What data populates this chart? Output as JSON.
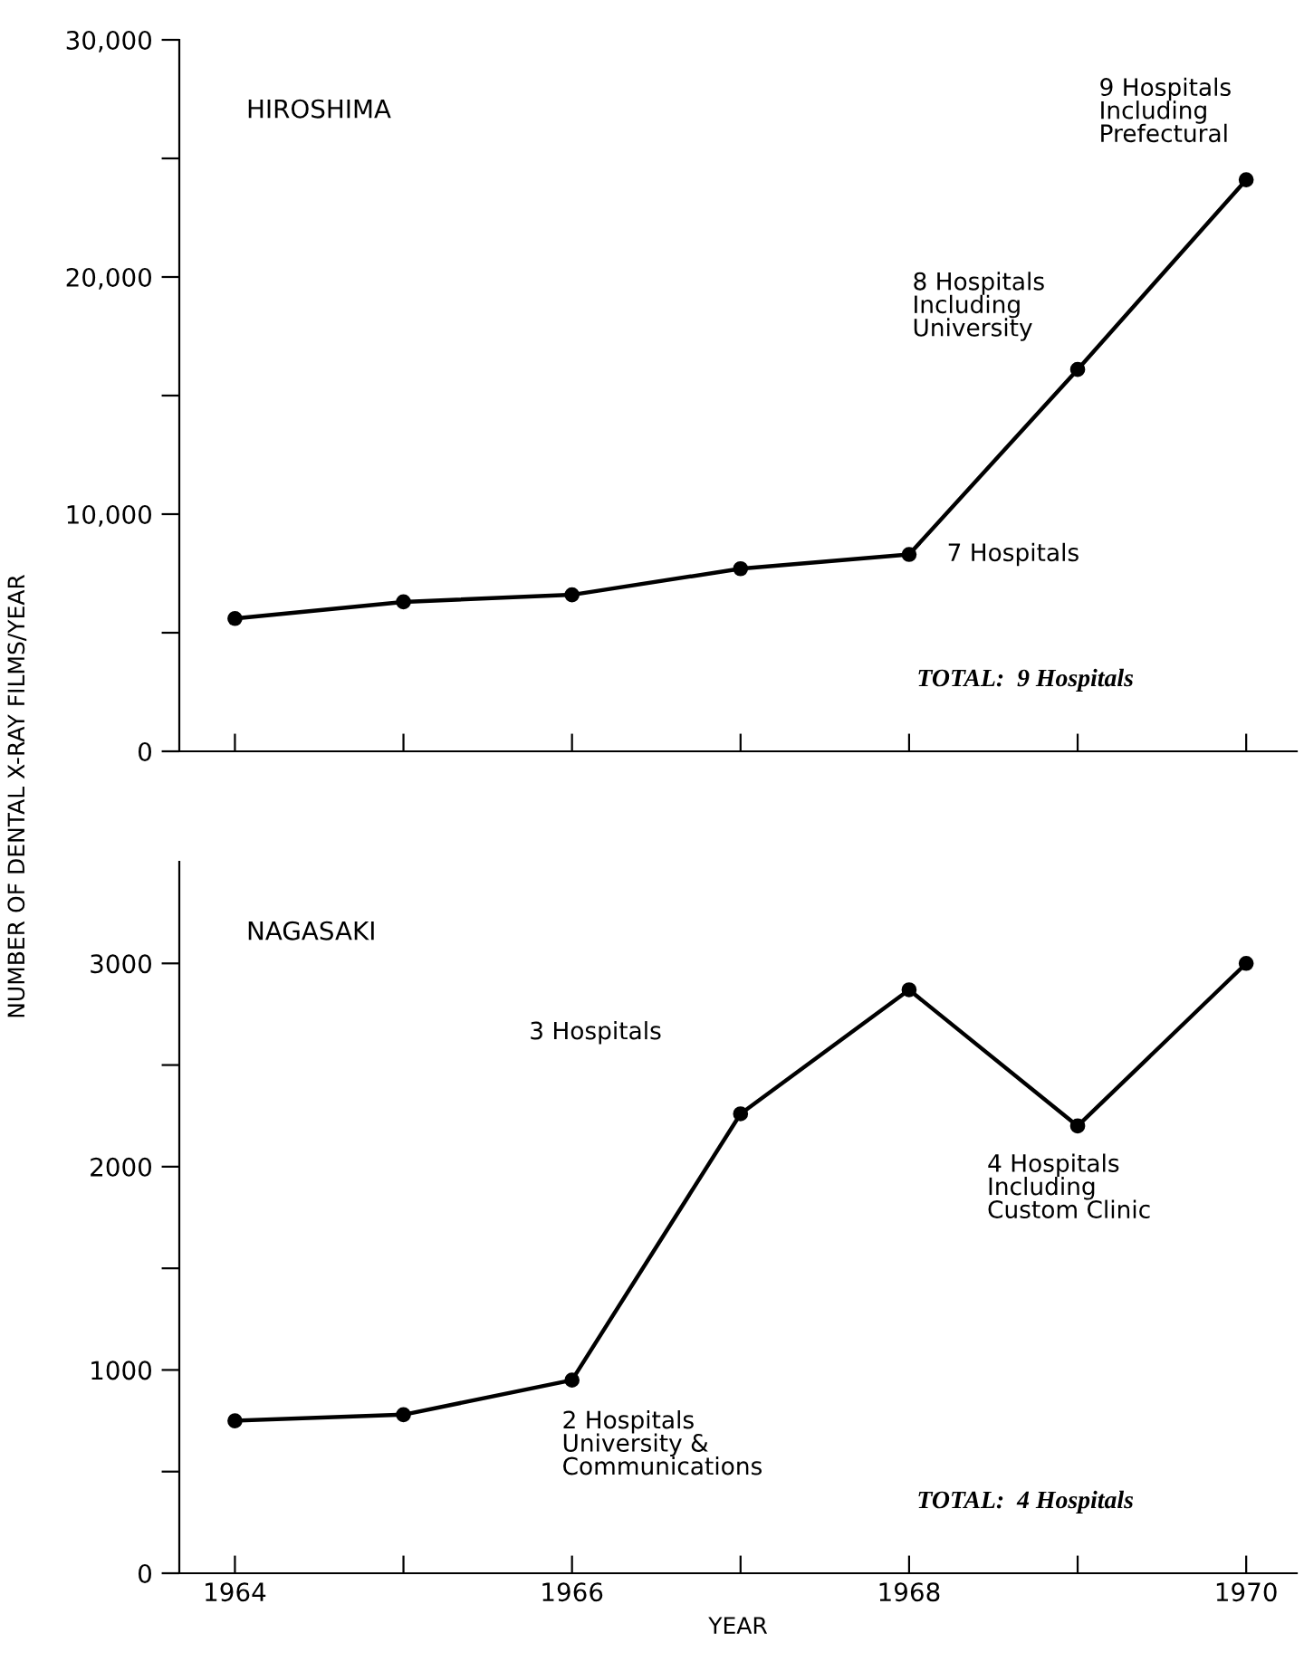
{
  "chart_data": [
    {
      "type": "line",
      "title": "HIROSHIMA",
      "ylabel": "NUMBER OF DENTAL X-RAY FILMS/YEAR",
      "x": [
        1964,
        1965,
        1966,
        1967,
        1968,
        1969,
        1970
      ],
      "series": [
        {
          "color": "#000000",
          "values": [
            5600,
            6300,
            6600,
            7700,
            8300,
            16100,
            24100
          ]
        }
      ],
      "xlim": [
        1963.67,
        1970.3
      ],
      "ylim": [
        0,
        30000
      ],
      "xticks": [
        {
          "value": 1964,
          "label": null
        },
        {
          "value": 1965,
          "label": null
        },
        {
          "value": 1966,
          "label": null
        },
        {
          "value": 1967,
          "label": null
        },
        {
          "value": 1968,
          "label": null
        },
        {
          "value": 1969,
          "label": null
        },
        {
          "value": 1970,
          "label": null
        }
      ],
      "yticks": [
        0,
        {
          "value": 5000,
          "label": null
        },
        {
          "value": 10000,
          "label": "10,000"
        },
        {
          "value": 15000,
          "label": null
        },
        {
          "value": 20000,
          "label": "20,000"
        },
        {
          "value": 25000,
          "label": null
        },
        {
          "value": 30000,
          "label": "30,000"
        }
      ],
      "tick_labels": "y",
      "marker": "circle",
      "line_style": "solid",
      "grid": false,
      "legend": false,
      "annotations": [
        "9 Hospitals\nIncluding\nPrefectural",
        "8 Hospitals\nIncluding\nUniversity",
        {
          "text": "7 Hospitals",
          "x": 1968,
          "y": 8300
        },
        "TOTAL:  9 Hospitals"
      ]
    },
    {
      "type": "line",
      "title": "NAGASAKI",
      "xlabel": "YEAR",
      "x": [
        1964,
        1965,
        1966,
        1967,
        1968,
        1969,
        1970
      ],
      "series": [
        {
          "color": "#000000",
          "values": [
            750,
            780,
            950,
            2260,
            2870,
            2200,
            3000
          ]
        }
      ],
      "xlim": [
        1963.67,
        1970.3
      ],
      "ylim": [
        0,
        3500
      ],
      "xticks": [
        1964,
        {
          "value": 1965,
          "label": null
        },
        1966,
        {
          "value": 1967,
          "label": null
        },
        1968,
        {
          "value": 1969,
          "label": null
        },
        1970
      ],
      "yticks": [
        0,
        {
          "value": 500,
          "label": null
        },
        1000,
        {
          "value": 1500,
          "label": null
        },
        2000,
        {
          "value": 2500,
          "label": null
        },
        3000
      ],
      "marker": "circle",
      "line_style": "solid",
      "grid": false,
      "legend": false,
      "annotations": [
        "3 Hospitals",
        {
          "text": "2 Hospitals\nUniversity &\nCommunications",
          "x": 1966,
          "y": 950
        },
        {
          "text": "4 Hospitals\nIncluding\nCustom Clinic",
          "x": 1969,
          "y": 2200
        },
        "TOTAL:  4 Hospitals"
      ]
    }
  ]
}
